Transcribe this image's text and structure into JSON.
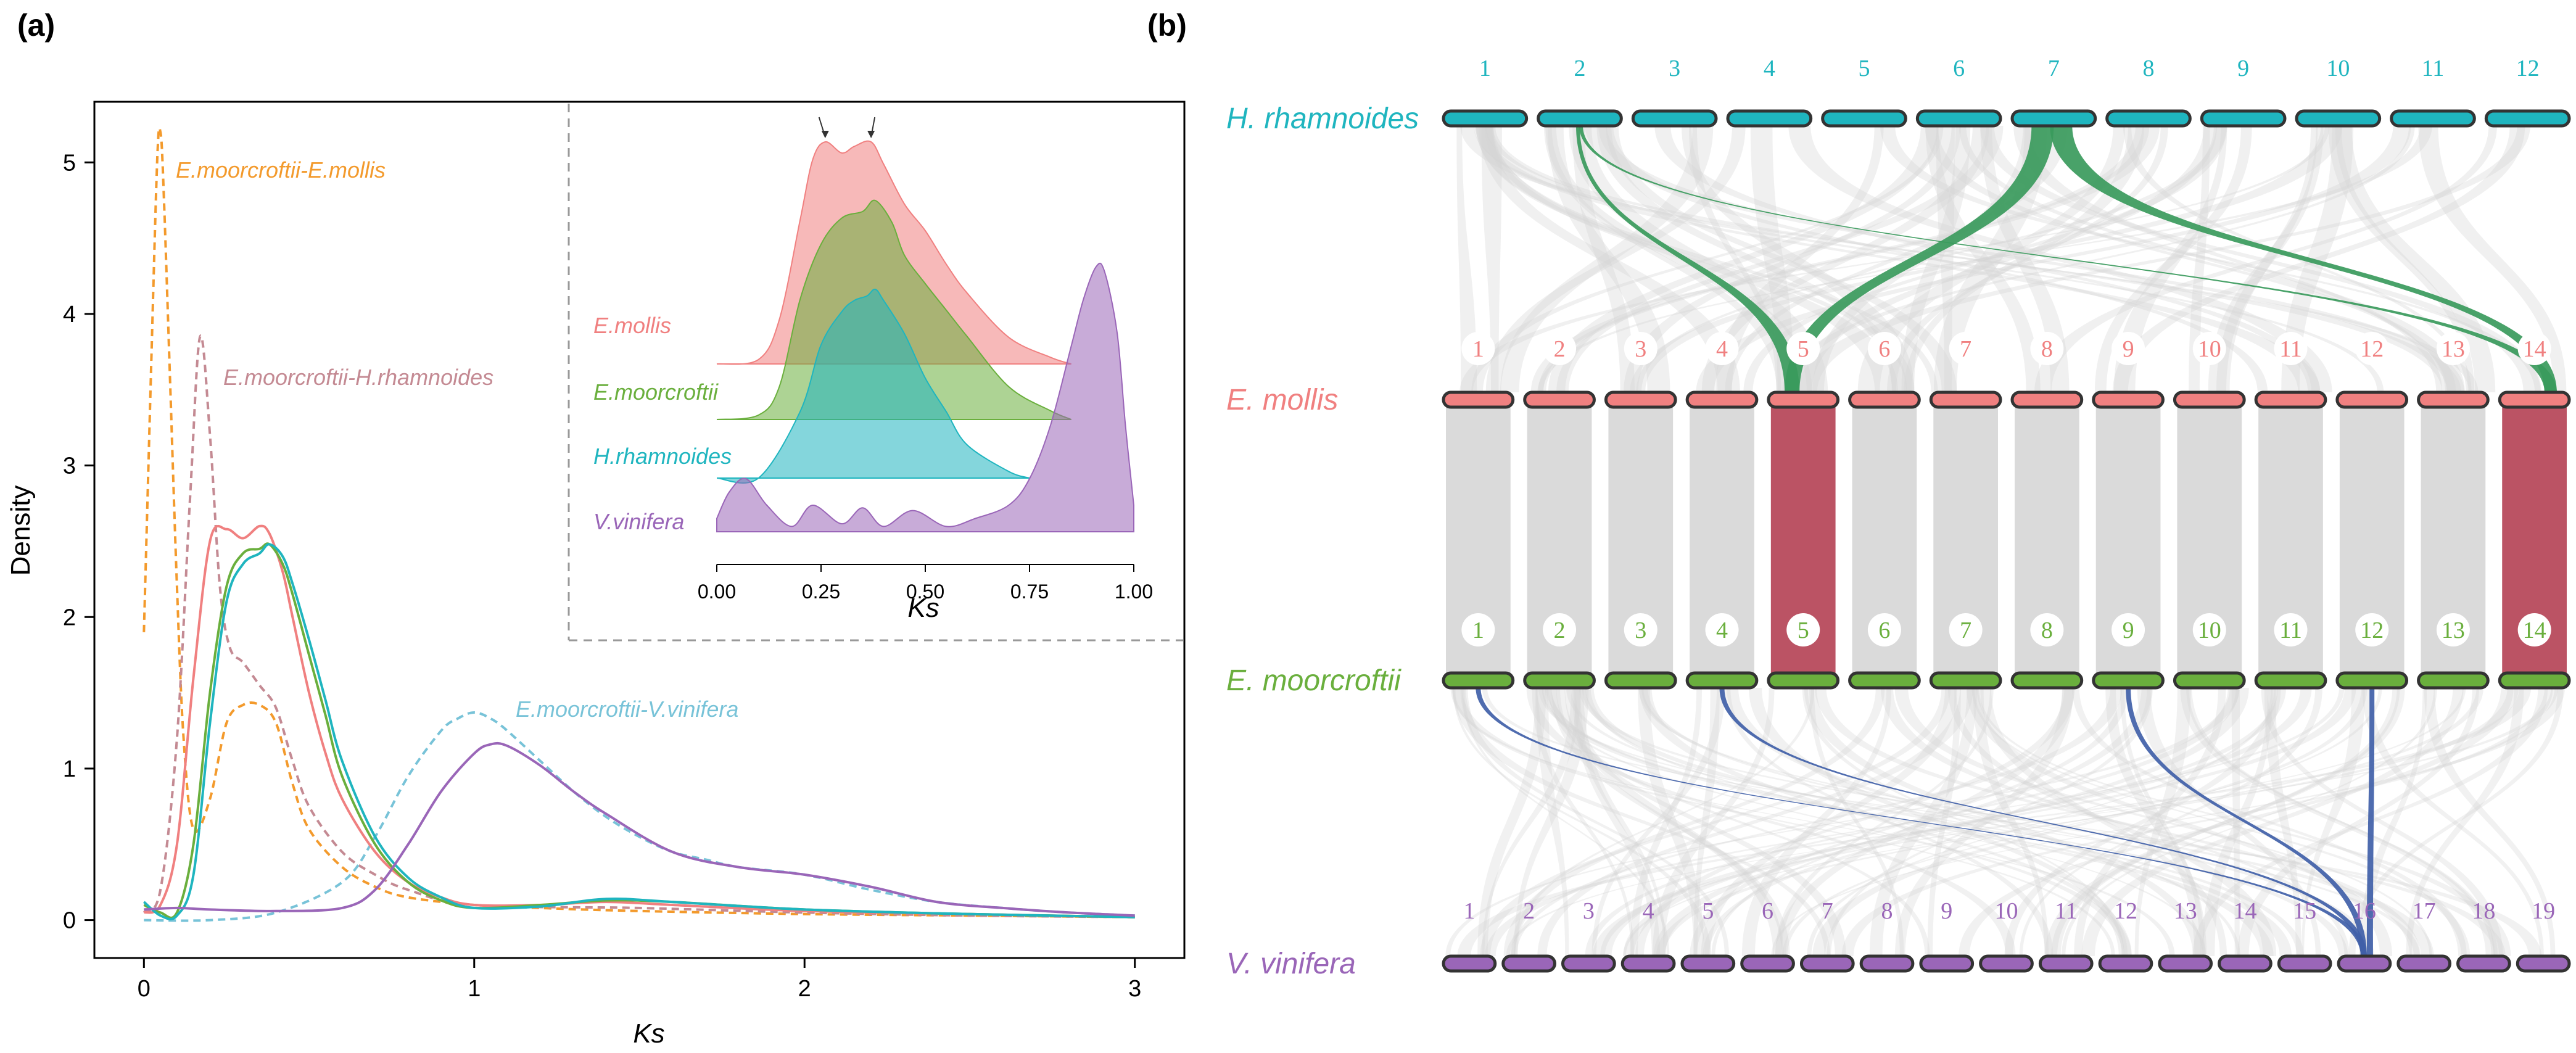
{
  "colors": {
    "mollis": "#F08080",
    "moorcroftii": "#6AAF3D",
    "rhamnoides": "#1FB5BF",
    "vinifera": "#9A66B8",
    "orange": "#F39A2C",
    "mauve": "#C48A93",
    "lightblue": "#78C3D8",
    "grey_link": "#D3D3D3",
    "green_link": "#3A9A5C",
    "red_link": "#B8485A",
    "blue_link": "#4060A8"
  },
  "chart_data": [
    {
      "panel": "(a)",
      "type": "line",
      "xlabel": "Ks",
      "ylabel": "Density",
      "xlim": [
        -0.15,
        3.15
      ],
      "ylim": [
        -0.25,
        5.4
      ],
      "xticks": [
        "0",
        "1",
        "2",
        "3"
      ],
      "yticks": [
        "0",
        "1",
        "2",
        "3",
        "4",
        "5"
      ],
      "series": [
        {
          "name": "E.moorcroftii-E.mollis",
          "style": "dashed",
          "color_key": "orange",
          "label_text": "E.moorcroftii-E.mollis",
          "x": [
            0.0,
            0.02,
            0.04,
            0.05,
            0.06,
            0.08,
            0.1,
            0.12,
            0.15,
            0.2,
            0.25,
            0.3,
            0.35,
            0.4,
            0.45,
            0.5,
            0.6,
            0.7,
            0.8,
            1.0,
            1.2,
            1.5,
            2.0,
            2.5,
            3.0
          ],
          "y": [
            1.9,
            3.5,
            5.0,
            5.2,
            4.8,
            3.5,
            2.2,
            1.2,
            0.6,
            0.8,
            1.3,
            1.42,
            1.42,
            1.3,
            0.9,
            0.6,
            0.35,
            0.22,
            0.15,
            0.1,
            0.08,
            0.06,
            0.04,
            0.03,
            0.02
          ]
        },
        {
          "name": "E.moorcroftii-H.rhamnoides",
          "style": "dashed",
          "color_key": "mauve",
          "label_text": "E.moorcroftii-H.rhamnoides",
          "x": [
            0.0,
            0.05,
            0.1,
            0.14,
            0.17,
            0.2,
            0.23,
            0.26,
            0.3,
            0.35,
            0.4,
            0.45,
            0.5,
            0.6,
            0.7,
            0.8,
            1.0,
            1.5,
            2.0,
            2.5,
            3.0
          ],
          "y": [
            0.05,
            0.2,
            1.2,
            2.8,
            3.85,
            3.2,
            2.2,
            1.8,
            1.7,
            1.55,
            1.4,
            1.05,
            0.75,
            0.45,
            0.3,
            0.2,
            0.1,
            0.08,
            0.05,
            0.03,
            0.02
          ]
        },
        {
          "name": "E.moorcroftii-V.vinifera",
          "style": "dashed",
          "color_key": "lightblue",
          "label_text": "E.moorcroftii-V.vinifera",
          "x": [
            0.0,
            0.2,
            0.4,
            0.6,
            0.7,
            0.8,
            0.9,
            0.95,
            1.0,
            1.05,
            1.1,
            1.2,
            1.3,
            1.4,
            1.5,
            1.6,
            1.7,
            1.8,
            2.0,
            2.2,
            2.4,
            2.6,
            2.8,
            3.0
          ],
          "y": [
            0.0,
            0.0,
            0.05,
            0.25,
            0.55,
            0.95,
            1.25,
            1.33,
            1.37,
            1.33,
            1.25,
            1.05,
            0.85,
            0.68,
            0.55,
            0.45,
            0.4,
            0.35,
            0.3,
            0.2,
            0.12,
            0.08,
            0.05,
            0.03
          ]
        },
        {
          "name": "E.mollis",
          "style": "solid",
          "color_key": "mollis",
          "x": [
            0.0,
            0.05,
            0.1,
            0.15,
            0.2,
            0.25,
            0.3,
            0.35,
            0.38,
            0.42,
            0.45,
            0.5,
            0.55,
            0.6,
            0.7,
            0.8,
            0.9,
            1.0,
            1.2,
            1.4,
            1.6,
            2.0,
            2.5,
            3.0
          ],
          "y": [
            0.05,
            0.1,
            0.5,
            1.6,
            2.5,
            2.58,
            2.52,
            2.6,
            2.55,
            2.3,
            2.0,
            1.5,
            1.1,
            0.8,
            0.45,
            0.25,
            0.15,
            0.1,
            0.1,
            0.12,
            0.1,
            0.06,
            0.04,
            0.02
          ]
        },
        {
          "name": "E.moorcroftii",
          "style": "solid",
          "color_key": "moorcroftii",
          "x": [
            0.0,
            0.05,
            0.1,
            0.15,
            0.2,
            0.25,
            0.3,
            0.35,
            0.38,
            0.42,
            0.45,
            0.5,
            0.55,
            0.6,
            0.7,
            0.8,
            0.9,
            1.0,
            1.2,
            1.4,
            1.6,
            2.0,
            2.5,
            3.0
          ],
          "y": [
            0.1,
            0.05,
            0.05,
            0.5,
            1.5,
            2.2,
            2.42,
            2.45,
            2.48,
            2.35,
            2.15,
            1.75,
            1.35,
            0.95,
            0.5,
            0.25,
            0.13,
            0.08,
            0.1,
            0.13,
            0.12,
            0.07,
            0.04,
            0.02
          ]
        },
        {
          "name": "H.rhamnoides",
          "style": "solid",
          "color_key": "rhamnoides",
          "x": [
            0.0,
            0.05,
            0.1,
            0.15,
            0.2,
            0.25,
            0.3,
            0.35,
            0.38,
            0.42,
            0.45,
            0.5,
            0.55,
            0.6,
            0.7,
            0.8,
            0.9,
            1.0,
            1.2,
            1.4,
            1.6,
            2.0,
            2.5,
            3.0
          ],
          "y": [
            0.12,
            0.03,
            0.03,
            0.3,
            1.3,
            2.1,
            2.35,
            2.42,
            2.48,
            2.4,
            2.22,
            1.85,
            1.45,
            1.05,
            0.55,
            0.28,
            0.15,
            0.08,
            0.09,
            0.14,
            0.12,
            0.07,
            0.04,
            0.02
          ]
        },
        {
          "name": "V.vinifera",
          "style": "solid",
          "color_key": "vinifera",
          "x": [
            0.0,
            0.1,
            0.2,
            0.4,
            0.6,
            0.7,
            0.8,
            0.9,
            1.0,
            1.05,
            1.1,
            1.2,
            1.3,
            1.4,
            1.6,
            1.8,
            2.0,
            2.2,
            2.4,
            2.6,
            2.8,
            3.0
          ],
          "y": [
            0.07,
            0.08,
            0.07,
            0.06,
            0.08,
            0.2,
            0.5,
            0.85,
            1.1,
            1.16,
            1.15,
            1.02,
            0.85,
            0.7,
            0.45,
            0.35,
            0.3,
            0.22,
            0.12,
            0.08,
            0.05,
            0.03
          ]
        }
      ]
    },
    {
      "panel": "(a) inset",
      "type": "area",
      "xlabel": "Ks",
      "xlim": [
        0.0,
        1.0
      ],
      "xticks": [
        "0.00",
        "0.25",
        "0.50",
        "0.75",
        "1.00"
      ],
      "arrow_marks_at": [
        0.26,
        0.37
      ],
      "series": [
        {
          "name": "E.mollis",
          "color_key": "mollis",
          "x": [
            0.0,
            0.1,
            0.15,
            0.2,
            0.23,
            0.26,
            0.3,
            0.33,
            0.37,
            0.4,
            0.45,
            0.5,
            0.55,
            0.6,
            0.7,
            0.8,
            0.85
          ],
          "y": [
            0.0,
            0.02,
            0.2,
            0.65,
            0.92,
            1.0,
            0.95,
            0.98,
            1.0,
            0.9,
            0.72,
            0.6,
            0.45,
            0.32,
            0.12,
            0.03,
            0.0
          ]
        },
        {
          "name": "E.moorcroftii",
          "color_key": "moorcroftii",
          "x": [
            0.0,
            0.1,
            0.15,
            0.2,
            0.25,
            0.3,
            0.35,
            0.38,
            0.42,
            0.45,
            0.5,
            0.55,
            0.6,
            0.7,
            0.8,
            0.85
          ],
          "y": [
            0.0,
            0.02,
            0.15,
            0.55,
            0.8,
            0.92,
            0.95,
            1.0,
            0.9,
            0.75,
            0.62,
            0.5,
            0.38,
            0.15,
            0.04,
            0.0
          ]
        },
        {
          "name": "H.rhamnoides",
          "color_key": "rhamnoides",
          "x": [
            0.0,
            0.1,
            0.2,
            0.25,
            0.3,
            0.33,
            0.36,
            0.38,
            0.4,
            0.45,
            0.5,
            0.55,
            0.6,
            0.7,
            0.75
          ],
          "y": [
            0.0,
            0.0,
            0.3,
            0.6,
            0.75,
            0.8,
            0.82,
            0.85,
            0.8,
            0.65,
            0.45,
            0.3,
            0.15,
            0.03,
            0.0
          ]
        },
        {
          "name": "V.vinifera",
          "color_key": "vinifera",
          "x": [
            0.0,
            0.03,
            0.07,
            0.12,
            0.18,
            0.23,
            0.3,
            0.35,
            0.4,
            0.47,
            0.55,
            0.62,
            0.7,
            0.75,
            0.8,
            0.85,
            0.88,
            0.91,
            0.93,
            0.96,
            0.98,
            1.0
          ],
          "y": [
            0.05,
            0.15,
            0.2,
            0.1,
            0.02,
            0.1,
            0.03,
            0.09,
            0.02,
            0.08,
            0.02,
            0.05,
            0.1,
            0.2,
            0.4,
            0.7,
            0.88,
            1.0,
            0.98,
            0.75,
            0.4,
            0.1
          ]
        }
      ]
    },
    {
      "panel": "(b)",
      "type": "synteny",
      "genomes": [
        {
          "name": "H. rhamnoides",
          "color_key": "rhamnoides",
          "chromosomes": [
            "1",
            "2",
            "3",
            "4",
            "5",
            "6",
            "7",
            "8",
            "9",
            "10",
            "11",
            "12"
          ]
        },
        {
          "name": "E. mollis",
          "color_key": "mollis",
          "chromosomes": [
            "1",
            "2",
            "3",
            "4",
            "5",
            "6",
            "7",
            "8",
            "9",
            "10",
            "11",
            "12",
            "13",
            "14"
          ]
        },
        {
          "name": "E. moorcroftii",
          "color_key": "moorcroftii",
          "chromosomes": [
            "1",
            "2",
            "3",
            "4",
            "5",
            "6",
            "7",
            "8",
            "9",
            "10",
            "11",
            "12",
            "13",
            "14"
          ]
        },
        {
          "name": "V. vinifera",
          "color_key": "vinifera",
          "chromosomes": [
            "1",
            "2",
            "3",
            "4",
            "5",
            "6",
            "7",
            "8",
            "9",
            "10",
            "11",
            "12",
            "13",
            "14",
            "15",
            "16",
            "17",
            "18",
            "19"
          ]
        }
      ],
      "highlighted_links": [
        {
          "from": "H. rhamnoides 2",
          "to": "E. mollis 5",
          "color_key": "green_link"
        },
        {
          "from": "H. rhamnoides 2",
          "to": "E. mollis 14",
          "color_key": "green_link"
        },
        {
          "from": "H. rhamnoides 7",
          "to": "E. mollis 5",
          "color_key": "green_link"
        },
        {
          "from": "H. rhamnoides 7",
          "to": "E. mollis 14",
          "color_key": "green_link"
        },
        {
          "from": "E. mollis 5",
          "to": "E. moorcroftii 5",
          "color_key": "red_link"
        },
        {
          "from": "E. mollis 14",
          "to": "E. moorcroftii 14",
          "color_key": "red_link"
        },
        {
          "from": "E. moorcroftii 1",
          "to": "V. vinifera 16",
          "color_key": "blue_link"
        },
        {
          "from": "E. moorcroftii 4",
          "to": "V. vinifera 16",
          "color_key": "blue_link"
        },
        {
          "from": "E. moorcroftii 9",
          "to": "V. vinifera 16",
          "color_key": "blue_link"
        },
        {
          "from": "E. moorcroftii 12",
          "to": "V. vinifera 16",
          "color_key": "blue_link"
        }
      ]
    }
  ],
  "panel_a": {
    "label": "(a)",
    "inset_labels": [
      "E.mollis",
      "E.moorcroftii",
      "H.rhamnoides",
      "V.vinifera"
    ]
  },
  "panel_b": {
    "label": "(b)"
  }
}
